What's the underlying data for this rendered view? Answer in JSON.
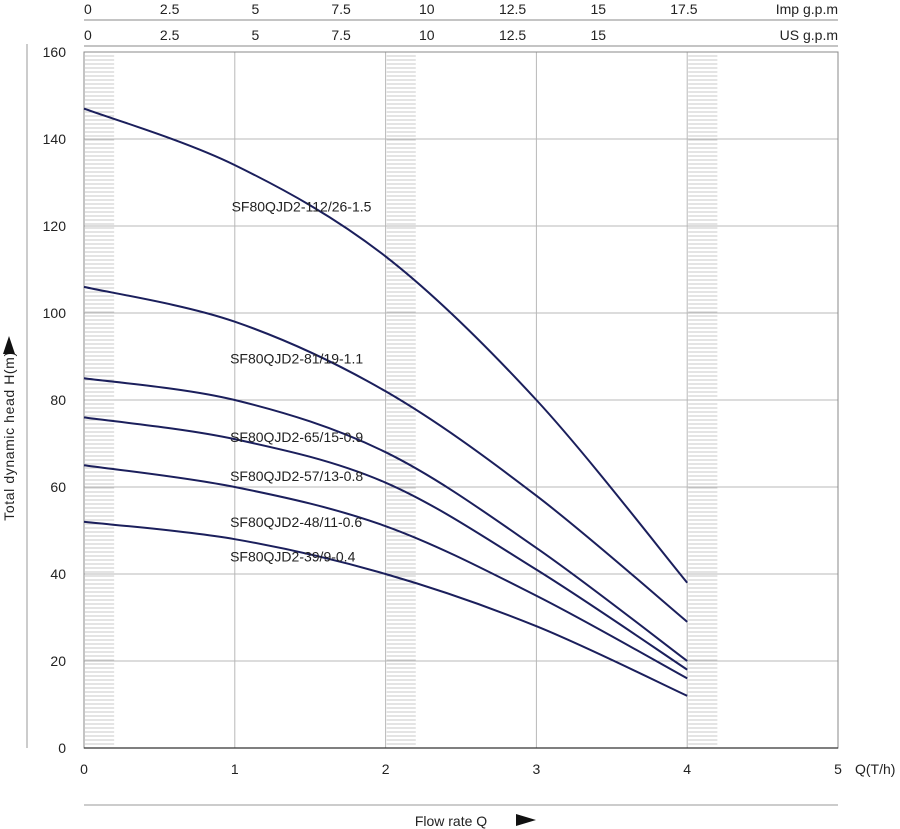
{
  "chart_data": {
    "type": "line",
    "xlabel": "Flow rate Q",
    "xunit": "Q(T/h)",
    "ylabel": "Total dynamic head H(m)",
    "xlim": [
      0,
      5
    ],
    "ylim": [
      0,
      160
    ],
    "x_ticks": [
      0,
      1,
      2,
      3,
      4,
      5
    ],
    "y_ticks": [
      0,
      20,
      40,
      60,
      80,
      100,
      120,
      140,
      160
    ],
    "grid": true,
    "legend": "none",
    "top_axes": [
      {
        "label": "Imp g.p.m",
        "ticks": [
          "0",
          "2.5",
          "5",
          "7.5",
          "10",
          "12.5",
          "15",
          "17.5"
        ],
        "tick_values_th": [
          0,
          0.568,
          1.137,
          1.705,
          2.273,
          2.842,
          3.41,
          3.978
        ]
      },
      {
        "label": "US g.p.m",
        "ticks": [
          "0",
          "2.5",
          "5",
          "7.5",
          "10",
          "12.5",
          "15"
        ],
        "tick_values_th": [
          0,
          0.568,
          1.137,
          1.705,
          2.273,
          2.842,
          3.41
        ]
      }
    ],
    "shaded_bands": [
      [
        0,
        0.2
      ],
      [
        2,
        2.2
      ],
      [
        4,
        4.2
      ]
    ],
    "line_color": "#1b1f5c",
    "series": [
      {
        "name": "SF80QJD2-112/26-1.5",
        "x": [
          0,
          1,
          2,
          3,
          4
        ],
        "y": [
          147,
          134,
          113,
          80,
          38
        ],
        "label_at": [
          2,
          124.5
        ]
      },
      {
        "name": "SF80QJD2-81/19-1.1",
        "x": [
          0,
          1,
          2,
          3,
          4
        ],
        "y": [
          106,
          98,
          82,
          58,
          29
        ],
        "label_at": [
          1.99,
          89.5
        ]
      },
      {
        "name": "SF80QJD2-65/15-0.9",
        "x": [
          0,
          1,
          2,
          3,
          4
        ],
        "y": [
          85,
          80,
          68,
          46,
          20
        ],
        "label_at": [
          1.99,
          71.5
        ]
      },
      {
        "name": "SF80QJD2-57/13-0.8",
        "x": [
          0,
          1,
          2,
          3,
          4
        ],
        "y": [
          76,
          71,
          61,
          41,
          18
        ],
        "label_at": [
          1.99,
          62.5
        ]
      },
      {
        "name": "SF80QJD2-48/11-0.6",
        "x": [
          0,
          1,
          2,
          3,
          4
        ],
        "y": [
          65,
          60,
          51,
          35,
          16
        ],
        "label_at": [
          1.99,
          52
        ]
      },
      {
        "name": "SF80QJD2-39/9-0.4",
        "x": [
          0,
          1,
          2,
          3,
          4
        ],
        "y": [
          52,
          48,
          40,
          28,
          12
        ],
        "label_at": [
          1.99,
          44
        ]
      }
    ]
  }
}
